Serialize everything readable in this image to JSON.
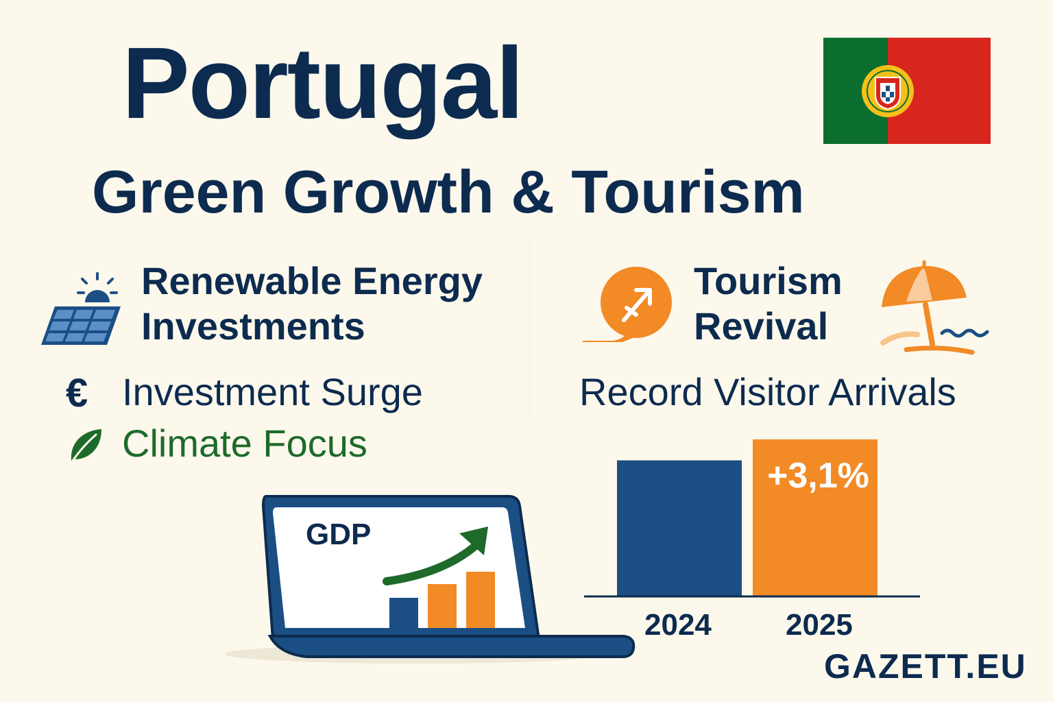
{
  "header": {
    "title": "Portugal",
    "subtitle": "Green Growth & Tourism"
  },
  "flag": {
    "name": "portugal-flag-icon",
    "colors": {
      "green": "#0b6e2e",
      "red": "#d7261e",
      "emblem": "#f4c01a"
    }
  },
  "renewable": {
    "heading_line1": "Renewable Energy",
    "heading_line2": "Investments",
    "icon": "solar-panel-icon",
    "items": [
      {
        "icon": "euro-icon",
        "glyph": "€",
        "label": "Investment Surge",
        "color": "#0d2b4f"
      },
      {
        "icon": "leaf-icon",
        "label": "Climate Focus",
        "color": "#1d6a2a"
      }
    ]
  },
  "tourism": {
    "heading_line1": "Tourism",
    "heading_line2": "Revival",
    "icons": [
      "airplane-icon",
      "beach-umbrella-icon"
    ],
    "subheading": "Record Visitor Arrivals"
  },
  "gdp_laptop": {
    "label": "GDP",
    "icon": "laptop-growth-chart-icon"
  },
  "chart_data": {
    "type": "bar",
    "categories": [
      "2024",
      "2025"
    ],
    "values": [
      100,
      103.1
    ],
    "colors": [
      "#1b4f84",
      "#f28a26"
    ],
    "annotations": [
      {
        "category": "2025",
        "text": "+3,1%"
      }
    ],
    "ylim": [
      80,
      104
    ]
  },
  "colors": {
    "background": "#fcf8ec",
    "navy": "#0d2b4f",
    "orange": "#f28a26",
    "green": "#1d6a2a",
    "blue": "#1b4f84"
  },
  "brand": "GAZETT.EU"
}
